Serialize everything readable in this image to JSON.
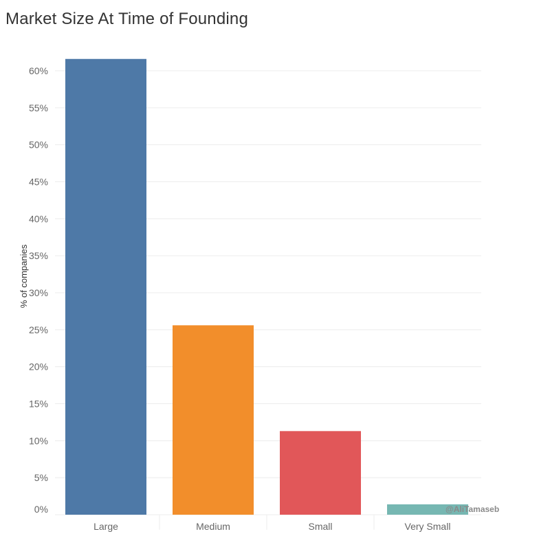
{
  "title": "Market Size At Time of Founding",
  "watermark": "@AliTamaseb",
  "chart_data": {
    "type": "bar",
    "title": "Market Size At Time of Founding",
    "xlabel": "",
    "ylabel": "% of companies",
    "categories": [
      "Large",
      "Medium",
      "Small",
      "Very Small"
    ],
    "values": [
      61.6,
      25.6,
      11.3,
      1.4
    ],
    "colors": [
      "#4e79a7",
      "#f28e2b",
      "#e15759",
      "#76b7b2"
    ],
    "ylim": [
      0,
      65
    ],
    "yticks": [
      0,
      5,
      10,
      15,
      20,
      25,
      30,
      35,
      40,
      45,
      50,
      55,
      60
    ],
    "ytick_labels": [
      "0%",
      "5%",
      "10%",
      "15%",
      "20%",
      "25%",
      "30%",
      "35%",
      "40%",
      "45%",
      "50%",
      "55%",
      "60%"
    ],
    "grid": true,
    "legend": "none"
  }
}
